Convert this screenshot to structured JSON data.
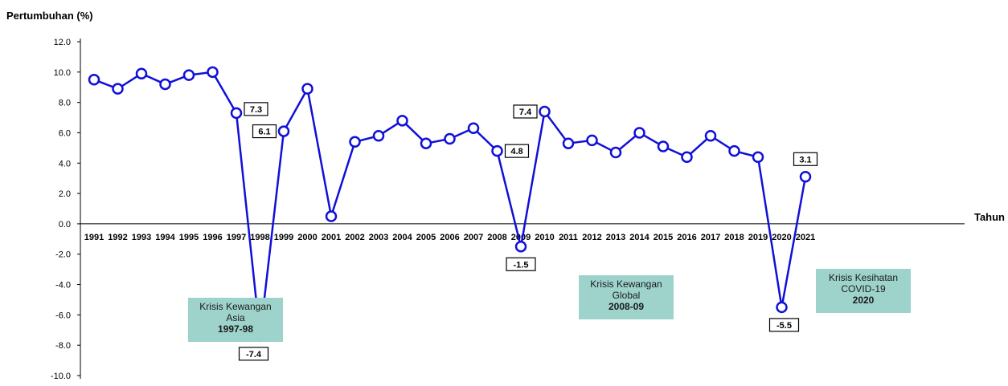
{
  "chart_data": {
    "type": "line",
    "ylabel": "Pertumbuhan (%)",
    "xlabel": "Tahun",
    "ylim": [
      -10,
      12
    ],
    "yticks": [
      "12.0",
      "10.0",
      "8.0",
      "6.0",
      "4.0",
      "2.0",
      "0.0",
      "-2.0",
      "-4.0",
      "-6.0",
      "-8.0",
      "-10.0"
    ],
    "ytick_values": [
      12,
      10,
      8,
      6,
      4,
      2,
      0,
      -2,
      -4,
      -6,
      -8,
      -10
    ],
    "grid": false,
    "categories": [
      "1991",
      "1992",
      "1993",
      "1994",
      "1995",
      "1996",
      "1997",
      "1998",
      "1999",
      "2000",
      "2001",
      "2002",
      "2003",
      "2004",
      "2005",
      "2006",
      "2007",
      "2008",
      "2009",
      "2010",
      "2011",
      "2012",
      "2013",
      "2014",
      "2015",
      "2016",
      "2017",
      "2018",
      "2019",
      "2020",
      "2021"
    ],
    "series": [
      {
        "color": "#1010d8",
        "values": [
          9.5,
          8.9,
          9.9,
          9.2,
          9.8,
          10.0,
          7.3,
          -7.4,
          6.1,
          8.9,
          0.5,
          5.4,
          5.8,
          6.8,
          5.3,
          5.6,
          6.3,
          4.8,
          -1.5,
          7.4,
          5.3,
          5.5,
          4.7,
          6.0,
          5.1,
          4.4,
          5.8,
          4.8,
          4.4,
          -5.5,
          3.1
        ]
      }
    ],
    "data_labels": [
      {
        "category": "1997",
        "text": "7.3"
      },
      {
        "category": "1998",
        "text": "-7.4"
      },
      {
        "category": "1999",
        "text": "6.1"
      },
      {
        "category": "2008",
        "text": "4.8"
      },
      {
        "category": "2009",
        "text": "-1.5"
      },
      {
        "category": "2010",
        "text": "7.4"
      },
      {
        "category": "2020",
        "text": "-5.5"
      },
      {
        "category": "2021",
        "text": "3.1"
      }
    ],
    "annotations": [
      {
        "lines": [
          "Krisis Kewangan",
          "Asia"
        ],
        "year": "1997-98"
      },
      {
        "lines": [
          "Krisis Kewangan",
          "Global"
        ],
        "year": "2008-09"
      },
      {
        "lines": [
          "Krisis Kesihatan",
          "COVID-19"
        ],
        "year": "2020"
      }
    ]
  }
}
